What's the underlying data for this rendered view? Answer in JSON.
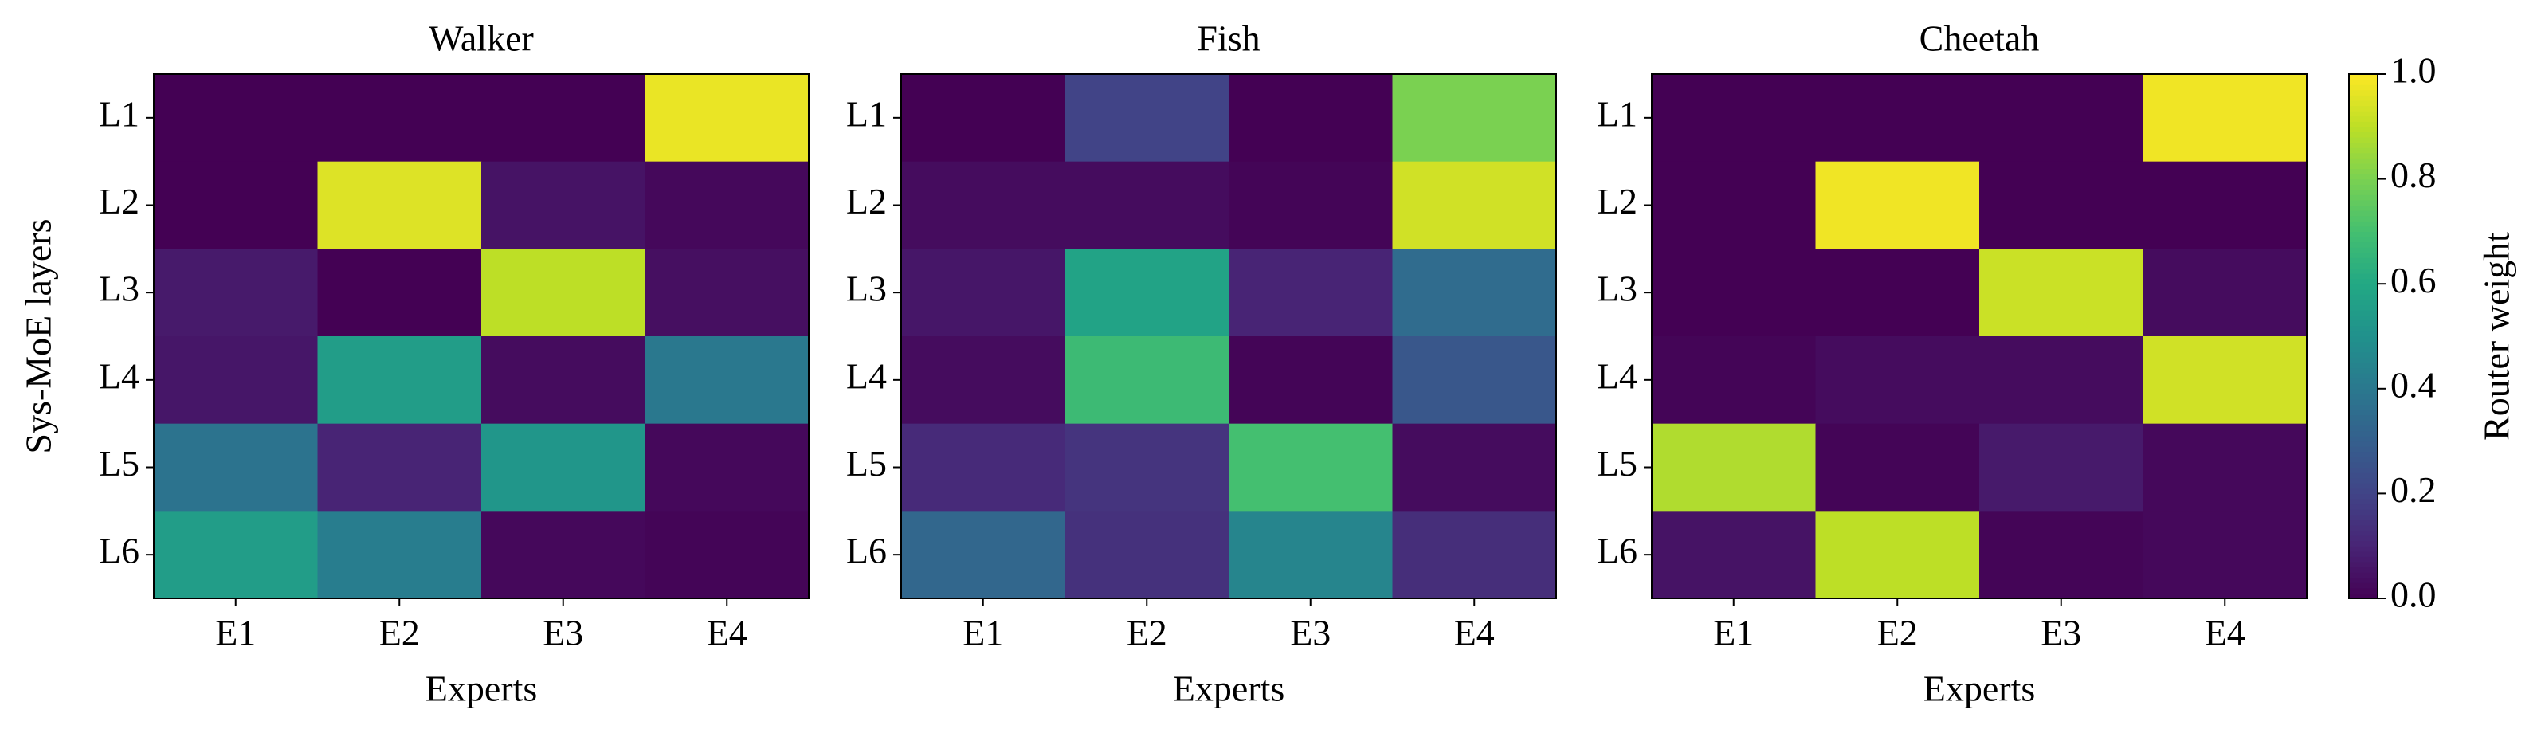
{
  "chart_data": [
    {
      "type": "heatmap",
      "title": "Walker",
      "x_label": "Experts",
      "y_label": "Sys-MoE layers",
      "categories": [
        "E1",
        "E2",
        "E3",
        "E4"
      ],
      "y_categories": [
        "L1",
        "L2",
        "L3",
        "L4",
        "L5",
        "L6"
      ],
      "colormap": "viridis",
      "zlim": [
        0,
        1
      ],
      "values": [
        [
          0.0,
          0.0,
          0.0,
          0.97
        ],
        [
          0.0,
          0.95,
          0.05,
          0.02
        ],
        [
          0.07,
          0.0,
          0.9,
          0.04
        ],
        [
          0.06,
          0.55,
          0.03,
          0.4
        ],
        [
          0.38,
          0.1,
          0.52,
          0.02
        ],
        [
          0.55,
          0.42,
          0.02,
          0.01
        ]
      ]
    },
    {
      "type": "heatmap",
      "title": "Fish",
      "x_label": "Experts",
      "categories": [
        "E1",
        "E2",
        "E3",
        "E4"
      ],
      "y_categories": [
        "L1",
        "L2",
        "L3",
        "L4",
        "L5",
        "L6"
      ],
      "colormap": "viridis",
      "zlim": [
        0,
        1
      ],
      "values": [
        [
          0.0,
          0.2,
          0.0,
          0.8
        ],
        [
          0.03,
          0.03,
          0.01,
          0.93
        ],
        [
          0.06,
          0.58,
          0.1,
          0.35
        ],
        [
          0.03,
          0.68,
          0.01,
          0.27
        ],
        [
          0.12,
          0.15,
          0.7,
          0.03
        ],
        [
          0.33,
          0.14,
          0.45,
          0.13
        ]
      ]
    },
    {
      "type": "heatmap",
      "title": "Cheetah",
      "x_label": "Experts",
      "categories": [
        "E1",
        "E2",
        "E3",
        "E4"
      ],
      "y_categories": [
        "L1",
        "L2",
        "L3",
        "L4",
        "L5",
        "L6"
      ],
      "colormap": "viridis",
      "zlim": [
        0,
        1
      ],
      "values": [
        [
          0.0,
          0.0,
          0.0,
          0.98
        ],
        [
          0.0,
          0.98,
          0.0,
          0.0
        ],
        [
          0.0,
          0.0,
          0.92,
          0.03
        ],
        [
          0.01,
          0.03,
          0.03,
          0.93
        ],
        [
          0.88,
          0.01,
          0.07,
          0.02
        ],
        [
          0.05,
          0.9,
          0.01,
          0.02
        ]
      ],
      "colorbar": {
        "label": "Router weight",
        "lim": [
          0,
          1
        ],
        "ticks": [
          {
            "value": 0,
            "label": "0.0"
          },
          0.2,
          0.4,
          0.6,
          0.8,
          {
            "value": 1,
            "label": "1.0"
          }
        ]
      }
    }
  ]
}
